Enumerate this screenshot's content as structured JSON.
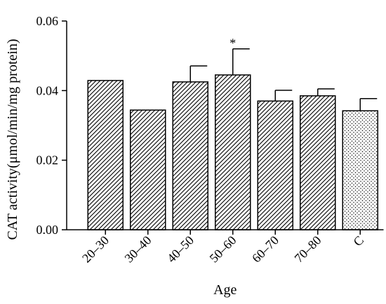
{
  "chart_data": {
    "type": "bar",
    "title": "",
    "xlabel": "Age",
    "ylabel": "CAT activity(μmol/min/mg protein)",
    "categories": [
      "20–30",
      "30–40",
      "40–50",
      "50–60",
      "60–70",
      "70–80",
      "C"
    ],
    "values": [
      0.0429,
      0.0344,
      0.0425,
      0.0445,
      0.037,
      0.0385,
      0.0342
    ],
    "error_upper": [
      null,
      null,
      0.0471,
      0.052,
      0.0401,
      0.0405,
      0.0377
    ],
    "annotations": [
      {
        "category": "50–60",
        "text": "*"
      }
    ],
    "fill_patterns": [
      "hatched",
      "hatched",
      "hatched",
      "hatched",
      "hatched",
      "hatched",
      "dotted"
    ],
    "ylim": [
      0,
      0.06
    ],
    "yticks": [
      "0.00",
      "0.02",
      "0.04",
      "0.06"
    ],
    "grid": false,
    "legend": "none"
  }
}
